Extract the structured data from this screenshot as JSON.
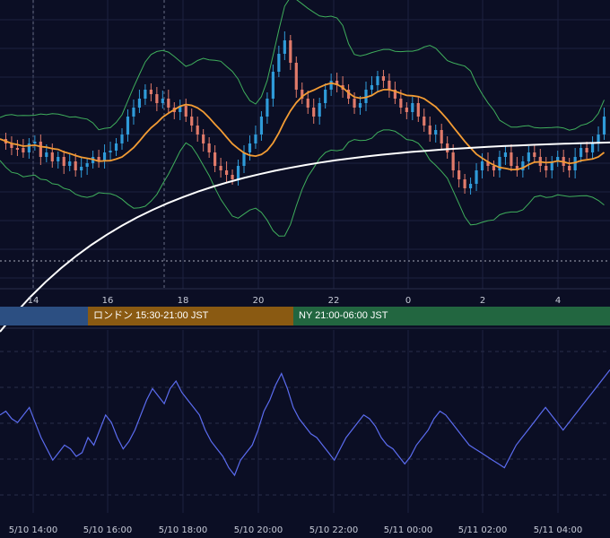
{
  "chart_data": [
    {
      "type": "line",
      "title": "",
      "panel": "price",
      "x_tick_labels": [
        "14",
        "16",
        "18",
        "20",
        "22",
        "0",
        "2",
        "4"
      ],
      "grid": true,
      "series": [
        {
          "name": "",
          "kind": "candles",
          "colors": {
            "up": "#2f9bd9",
            "down": "#e07a6a"
          },
          "close_path": [
            155,
            160,
            165,
            165,
            170,
            160,
            158,
            175,
            170,
            180,
            175,
            185,
            180,
            190,
            186,
            182,
            175,
            180,
            170,
            168,
            160,
            150,
            130,
            120,
            110,
            100,
            105,
            115,
            110,
            120,
            125,
            118,
            130,
            140,
            150,
            160,
            170,
            185,
            190,
            195,
            200,
            185,
            170,
            160,
            150,
            130,
            110,
            80,
            60,
            45,
            70,
            100,
            110,
            120,
            130,
            115,
            100,
            90,
            95,
            100,
            110,
            120,
            115,
            100,
            95,
            85,
            90,
            100,
            110,
            120,
            125,
            115,
            130,
            140,
            150,
            145,
            160,
            170,
            190,
            200,
            210,
            205,
            190,
            180,
            185,
            190,
            175,
            170,
            185,
            190,
            180,
            170,
            175,
            185,
            190,
            180,
            175,
            185,
            190,
            175,
            165,
            170,
            160,
            150,
            130
          ]
        },
        {
          "name": "",
          "kind": "line",
          "color": "#f39c34",
          "role": "moving-average-short"
        },
        {
          "name": "",
          "kind": "line",
          "color": "#ffffff",
          "role": "moving-average-long"
        },
        {
          "name": "",
          "kind": "band",
          "color": "#3fae5c",
          "role": "bollinger-bands"
        }
      ],
      "horizontal_dotted_line": true
    },
    {
      "type": "line",
      "title": "",
      "panel": "oscillator",
      "series": [
        {
          "name": "",
          "color": "#5b6cf0",
          "values": [
            56,
            57,
            55,
            54,
            56,
            58,
            54,
            50,
            47,
            44,
            46,
            48,
            47,
            45,
            46,
            50,
            48,
            52,
            56,
            54,
            50,
            47,
            49,
            52,
            56,
            60,
            63,
            61,
            59,
            63,
            65,
            62,
            60,
            58,
            56,
            52,
            49,
            47,
            45,
            42,
            40,
            44,
            46,
            48,
            52,
            57,
            60,
            64,
            67,
            63,
            58,
            55,
            53,
            51,
            50,
            48,
            46,
            44,
            47,
            50,
            52,
            54,
            56,
            55,
            53,
            50,
            48,
            47,
            45,
            43,
            45,
            48,
            50,
            52,
            55,
            57,
            56,
            54,
            52,
            50,
            48,
            47,
            46,
            45,
            44,
            43,
            42,
            45,
            48,
            50,
            52,
            54,
            56,
            58,
            56,
            54,
            52,
            54,
            56,
            58,
            60,
            62,
            64,
            66,
            68
          ]
        }
      ]
    }
  ],
  "sessions": [
    {
      "label": "",
      "color": "#2c4f82"
    },
    {
      "label": "ロンドン 15:30-21:00 JST",
      "color": "#8a5a12"
    },
    {
      "label": "NY 21:00-06:00 JST",
      "color": "#226640"
    }
  ],
  "bottom_axis_labels": [
    "5/10 14:00",
    "5/10 16:00",
    "5/10 18:00",
    "5/10 20:00",
    "5/10 22:00",
    "5/11 00:00",
    "5/11 02:00",
    "5/11 04:00"
  ]
}
